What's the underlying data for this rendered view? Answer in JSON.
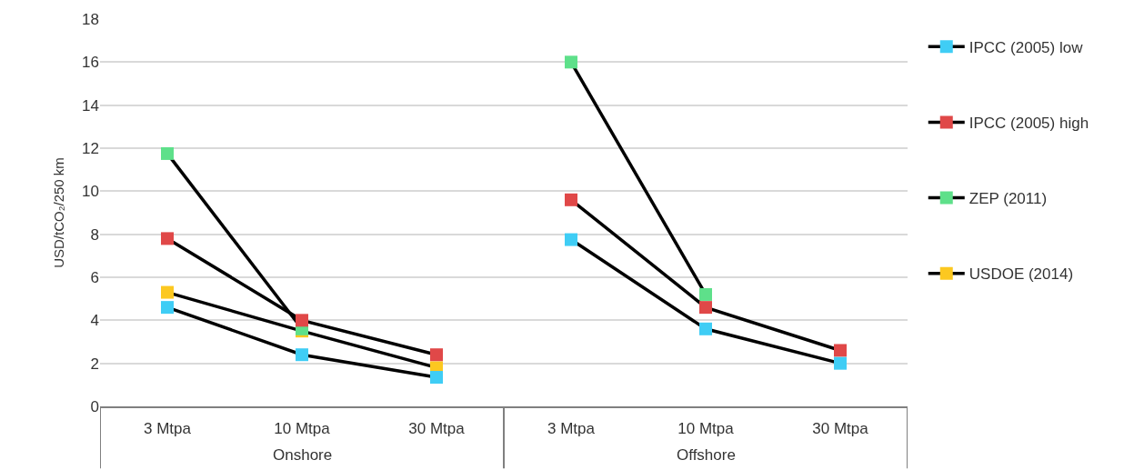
{
  "chart_data": {
    "type": "line",
    "ylabel": "USD/tCO₂/250 km",
    "categories": [
      "3 Mtpa",
      "10 Mtpa",
      "30 Mtpa",
      "3 Mtpa",
      "10 Mtpa",
      "30 Mtpa"
    ],
    "annotations": [
      "Onshore",
      "Offshore"
    ],
    "series": [
      {
        "name": "IPCC (2005) low",
        "color": "#3fcdf5",
        "values": [
          4.6,
          2.4,
          1.35,
          7.75,
          3.6,
          2.0
        ]
      },
      {
        "name": "IPCC (2005) high",
        "color": "#e04848",
        "values": [
          7.8,
          4.0,
          2.4,
          9.6,
          4.6,
          2.6
        ]
      },
      {
        "name": "ZEP (2011)",
        "color": "#5ee08a",
        "values": [
          11.75,
          3.6,
          null,
          16.0,
          5.2,
          null
        ]
      },
      {
        "name": "USDOE (2014)",
        "color": "#fcc820",
        "values": [
          5.3,
          3.5,
          1.8,
          null,
          null,
          null
        ]
      }
    ],
    "ylim": [
      0,
      18
    ],
    "yticks": [
      0,
      2,
      4,
      6,
      8,
      10,
      12,
      14,
      16,
      18
    ],
    "grid": "y",
    "legend": "right",
    "marker": "square",
    "line_style": "solid"
  }
}
